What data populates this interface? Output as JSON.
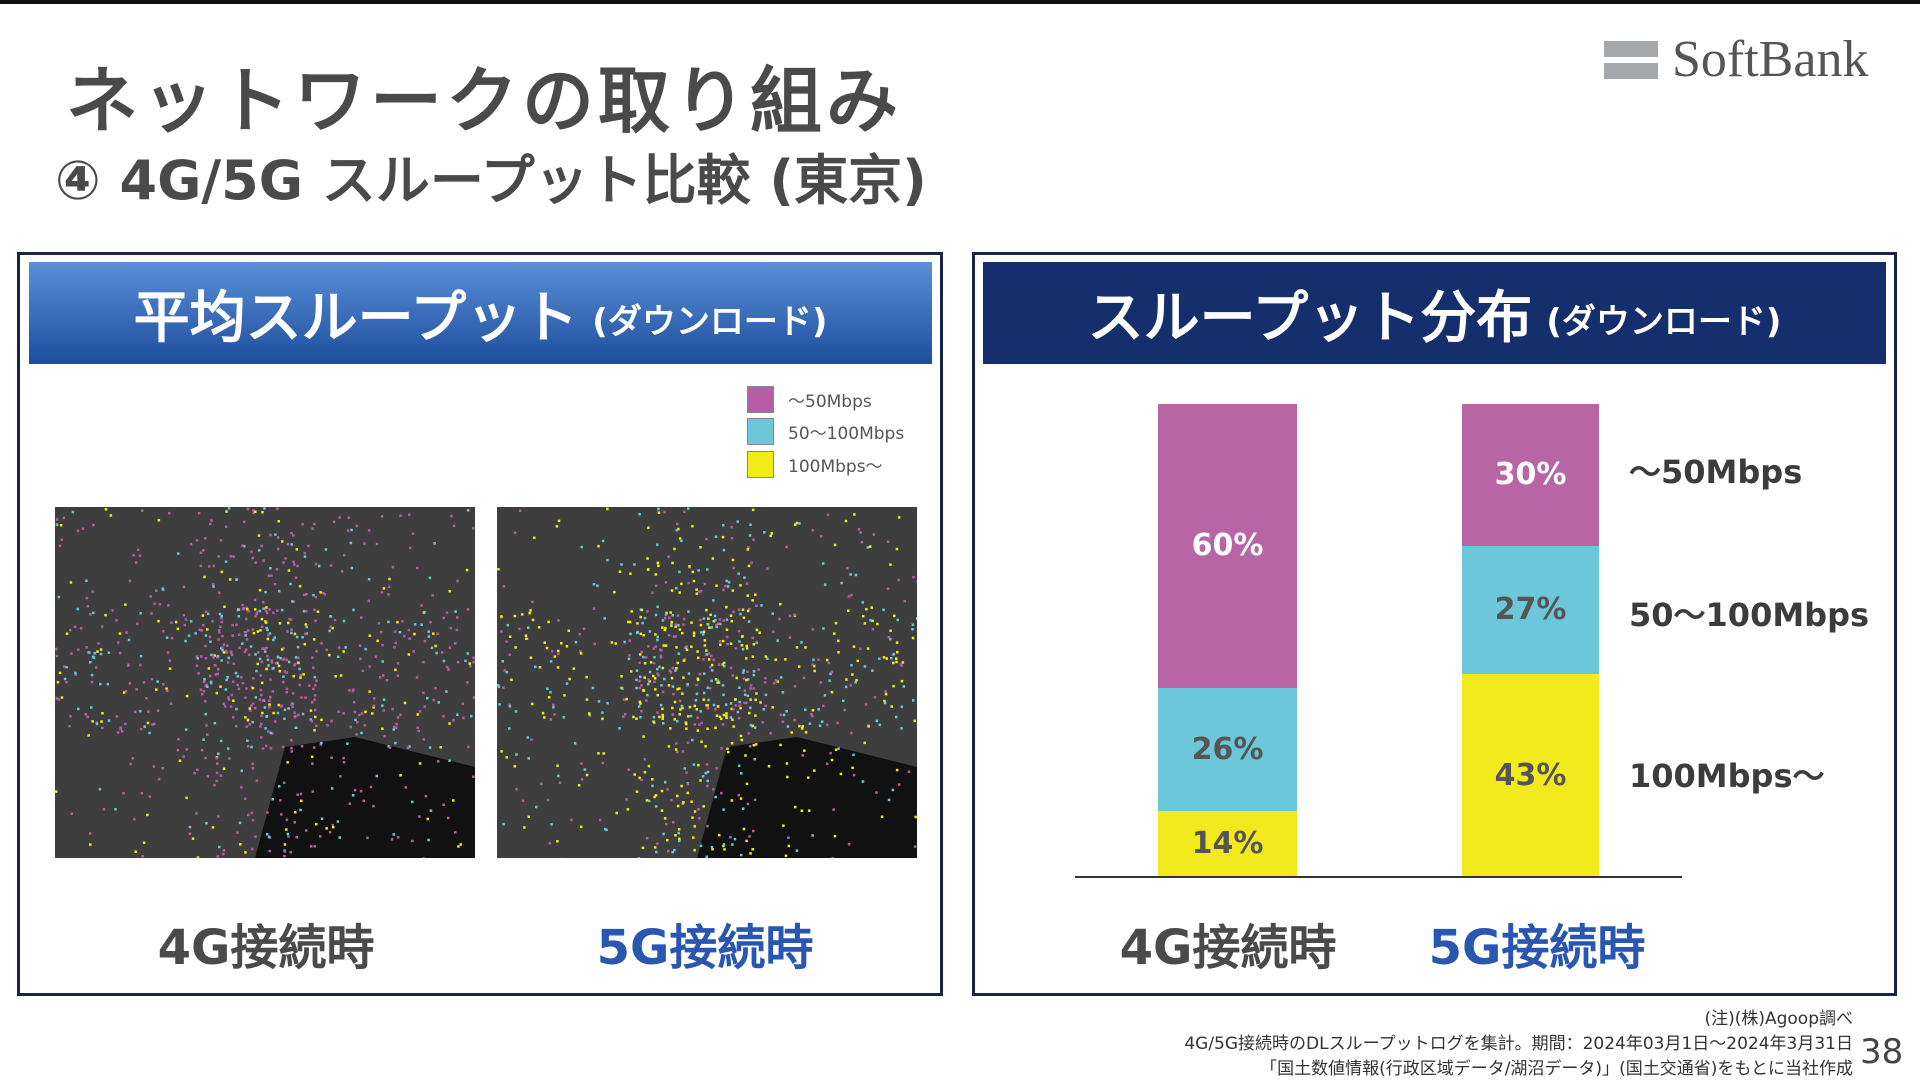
{
  "title": "ネットワークの取り組み",
  "subtitle": "④ 4G/5G スループット比較 (東京)",
  "logo": "SoftBank",
  "left_panel": {
    "header": "平均スループット",
    "header_sub": "(ダウンロード)",
    "legend": [
      {
        "label": "～50Mbps",
        "color": "#b55ea6"
      },
      {
        "label": "50～100Mbps",
        "color": "#6cc7d9"
      },
      {
        "label": "100Mbps～",
        "color": "#f3ea1a"
      }
    ],
    "maps": [
      {
        "label": "4G接続時",
        "label_color": "#4a4a4a"
      },
      {
        "label": "5G接続時",
        "label_color": "#2856b0"
      }
    ]
  },
  "right_panel": {
    "header": "スループット分布",
    "header_sub": "(ダウンロード)"
  },
  "chart_data": {
    "type": "bar",
    "stacked": true,
    "categories": [
      "4G接続時",
      "5G接続時"
    ],
    "series": [
      {
        "name": "～50Mbps",
        "color": "#b865a6",
        "values": [
          60,
          30
        ],
        "labels": [
          "60%",
          "30%"
        ]
      },
      {
        "name": "50～100Mbps",
        "color": "#6cc7d9",
        "values": [
          26,
          27
        ],
        "labels": [
          "26%",
          "27%"
        ]
      },
      {
        "name": "100Mbps～",
        "color": "#f3ea1e",
        "values": [
          14,
          43
        ],
        "labels": [
          "14%",
          "43%"
        ]
      }
    ],
    "ylim": [
      0,
      100
    ]
  },
  "footnotes": [
    "(注)(株)Agoop調べ",
    "4G/5G接続時のDLスループットログを集計。期間：2024年03月1日～2024年3月31日",
    "「国土数値情報(行政区域データ/湖沼データ)」(国土交通省)をもとに当社作成"
  ],
  "page_number": "38"
}
